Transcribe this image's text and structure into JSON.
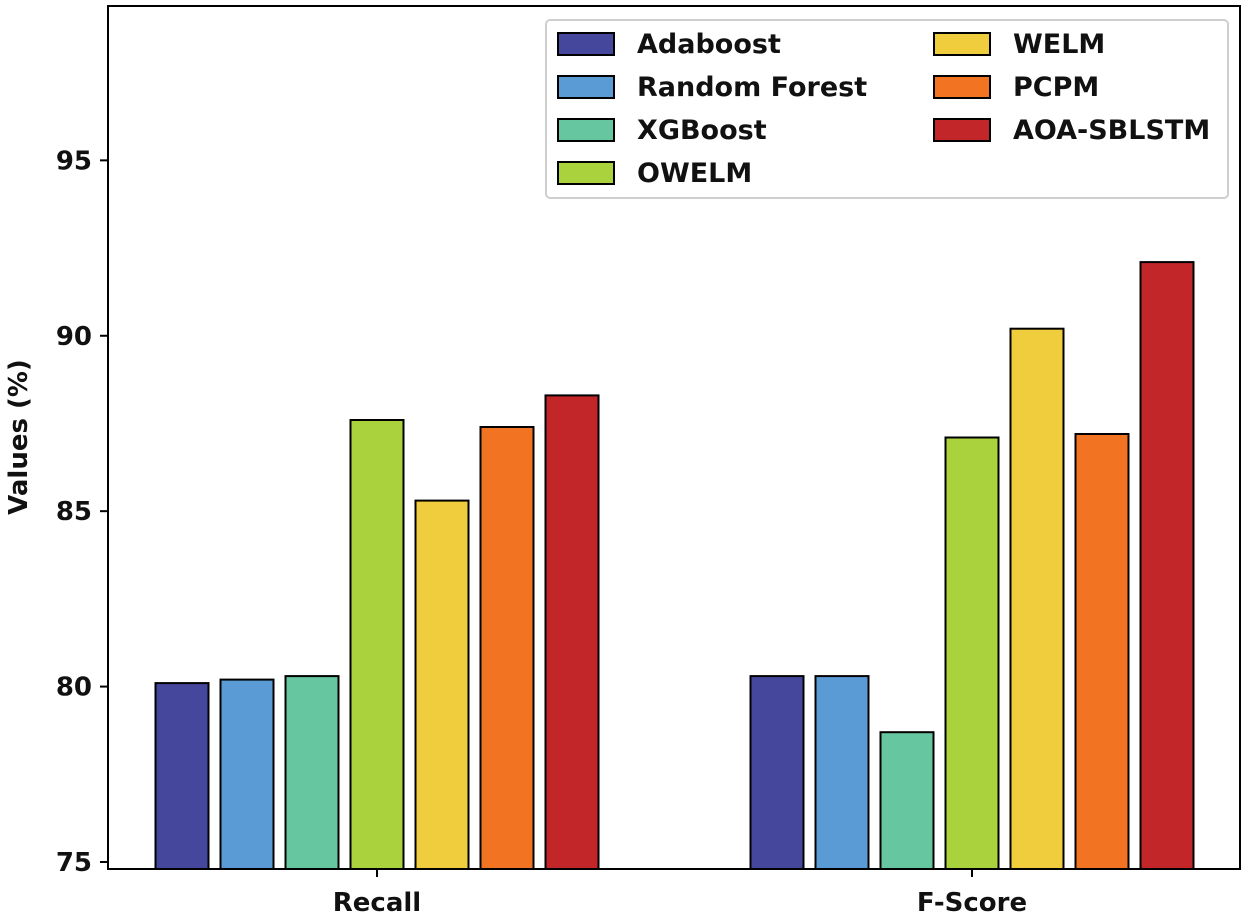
{
  "chart_data": {
    "type": "bar",
    "categories": [
      "Recall",
      "F-Score"
    ],
    "series": [
      {
        "name": "Adaboost",
        "color": "#45479c",
        "values": [
          80.1,
          80.3
        ]
      },
      {
        "name": "Random Forest",
        "color": "#5b9bd5",
        "values": [
          80.2,
          80.3
        ]
      },
      {
        "name": "XGBoost",
        "color": "#66c6a0",
        "values": [
          80.3,
          78.7
        ]
      },
      {
        "name": "OWELM",
        "color": "#a9d23d",
        "values": [
          87.6,
          87.1
        ]
      },
      {
        "name": "WELM",
        "color": "#efcd3d",
        "values": [
          85.3,
          90.2
        ]
      },
      {
        "name": "PCPM",
        "color": "#f27423",
        "values": [
          87.4,
          87.2
        ]
      },
      {
        "name": "AOA-SBLSTM",
        "color": "#c22629",
        "values": [
          88.3,
          92.1
        ]
      }
    ],
    "xlabel": "",
    "ylabel": "Values (%)",
    "ylim": [
      74.8,
      99.4
    ],
    "yticks": [
      "75",
      "80",
      "85",
      "90",
      "95"
    ],
    "grid": false,
    "legend_position": "top-right",
    "legend_columns": 2
  }
}
